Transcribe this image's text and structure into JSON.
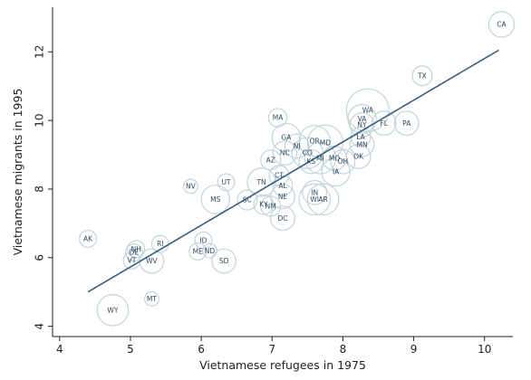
{
  "chart_data": {
    "type": "scatter",
    "title": "",
    "xlabel": "Vietnamese refugees in 1975",
    "ylabel": "Vietnamese migrants in 1995",
    "xlim": [
      3.9,
      10.4
    ],
    "ylim": [
      3.7,
      13.3
    ],
    "xticks": [
      4,
      5,
      6,
      7,
      8,
      9,
      10
    ],
    "yticks": [
      4,
      6,
      8,
      10,
      12
    ],
    "grid": false,
    "fit_line": {
      "x": [
        4.4,
        10.2
      ],
      "y": [
        5.0,
        12.05
      ]
    },
    "points": [
      {
        "label": "CA",
        "x": 10.24,
        "y": 12.8,
        "w": 0.18
      },
      {
        "label": "TX",
        "x": 9.12,
        "y": 11.3,
        "w": 0.14
      },
      {
        "label": "WA",
        "x": 8.35,
        "y": 10.3,
        "w": 0.3
      },
      {
        "label": "VA",
        "x": 8.27,
        "y": 10.05,
        "w": 0.2
      },
      {
        "label": "FL",
        "x": 8.58,
        "y": 9.92,
        "w": 0.17
      },
      {
        "label": "PA",
        "x": 8.9,
        "y": 9.92,
        "w": 0.17
      },
      {
        "label": "NY",
        "x": 8.27,
        "y": 9.87,
        "w": 0.17
      },
      {
        "label": "LA",
        "x": 8.25,
        "y": 9.52,
        "w": 0.14
      },
      {
        "label": "MN",
        "x": 8.27,
        "y": 9.3,
        "w": 0.17
      },
      {
        "label": "OK",
        "x": 8.22,
        "y": 8.95,
        "w": 0.17
      },
      {
        "label": "MA",
        "x": 7.08,
        "y": 10.08,
        "w": 0.13
      },
      {
        "label": "GA",
        "x": 7.2,
        "y": 9.5,
        "w": 0.2
      },
      {
        "label": "OR",
        "x": 7.6,
        "y": 9.4,
        "w": 0.22
      },
      {
        "label": "MD",
        "x": 7.75,
        "y": 9.35,
        "w": 0.25
      },
      {
        "label": "NJ",
        "x": 7.35,
        "y": 9.25,
        "w": 0.17
      },
      {
        "label": "NC",
        "x": 7.18,
        "y": 9.05,
        "w": 0.17
      },
      {
        "label": "CO",
        "x": 7.5,
        "y": 9.05,
        "w": 0.22
      },
      {
        "label": "MI",
        "x": 7.68,
        "y": 8.9,
        "w": 0.22
      },
      {
        "label": "MO",
        "x": 7.88,
        "y": 8.9,
        "w": 0.17
      },
      {
        "label": "OH",
        "x": 8.0,
        "y": 8.8,
        "w": 0.17
      },
      {
        "label": "KS",
        "x": 7.55,
        "y": 8.8,
        "w": 0.17
      },
      {
        "label": "AZ",
        "x": 6.98,
        "y": 8.85,
        "w": 0.14
      },
      {
        "label": "IA",
        "x": 7.9,
        "y": 8.5,
        "w": 0.2
      },
      {
        "label": "CT",
        "x": 7.1,
        "y": 8.4,
        "w": 0.14
      },
      {
        "label": "TN",
        "x": 6.85,
        "y": 8.2,
        "w": 0.2
      },
      {
        "label": "AL",
        "x": 7.15,
        "y": 8.1,
        "w": 0.14
      },
      {
        "label": "UT",
        "x": 6.35,
        "y": 8.2,
        "w": 0.12
      },
      {
        "label": "NV",
        "x": 5.85,
        "y": 8.08,
        "w": 0.1
      },
      {
        "label": "IN",
        "x": 7.6,
        "y": 7.9,
        "w": 0.17
      },
      {
        "label": "WI",
        "x": 7.6,
        "y": 7.7,
        "w": 0.22
      },
      {
        "label": "AR",
        "x": 7.72,
        "y": 7.7,
        "w": 0.22
      },
      {
        "label": "NE",
        "x": 7.15,
        "y": 7.78,
        "w": 0.17
      },
      {
        "label": "MS",
        "x": 6.2,
        "y": 7.7,
        "w": 0.2
      },
      {
        "label": "SC",
        "x": 6.65,
        "y": 7.68,
        "w": 0.14
      },
      {
        "label": "KY",
        "x": 6.88,
        "y": 7.55,
        "w": 0.14
      },
      {
        "label": "NM",
        "x": 6.98,
        "y": 7.5,
        "w": 0.14
      },
      {
        "label": "DC",
        "x": 7.15,
        "y": 7.15,
        "w": 0.17
      },
      {
        "label": "AK",
        "x": 4.4,
        "y": 6.55,
        "w": 0.12
      },
      {
        "label": "RI",
        "x": 5.42,
        "y": 6.4,
        "w": 0.12
      },
      {
        "label": "NH",
        "x": 5.08,
        "y": 6.25,
        "w": 0.12
      },
      {
        "label": "DE",
        "x": 5.05,
        "y": 6.15,
        "w": 0.12
      },
      {
        "label": "VT",
        "x": 5.02,
        "y": 5.92,
        "w": 0.12
      },
      {
        "label": "WV",
        "x": 5.3,
        "y": 5.9,
        "w": 0.17
      },
      {
        "label": "ID",
        "x": 6.03,
        "y": 6.5,
        "w": 0.12
      },
      {
        "label": "ME",
        "x": 5.95,
        "y": 6.18,
        "w": 0.12
      },
      {
        "label": "ND",
        "x": 6.12,
        "y": 6.2,
        "w": 0.1
      },
      {
        "label": "SD",
        "x": 6.32,
        "y": 5.9,
        "w": 0.17
      },
      {
        "label": "MT",
        "x": 5.3,
        "y": 4.8,
        "w": 0.1
      },
      {
        "label": "WY",
        "x": 4.75,
        "y": 4.47,
        "w": 0.22
      }
    ]
  }
}
